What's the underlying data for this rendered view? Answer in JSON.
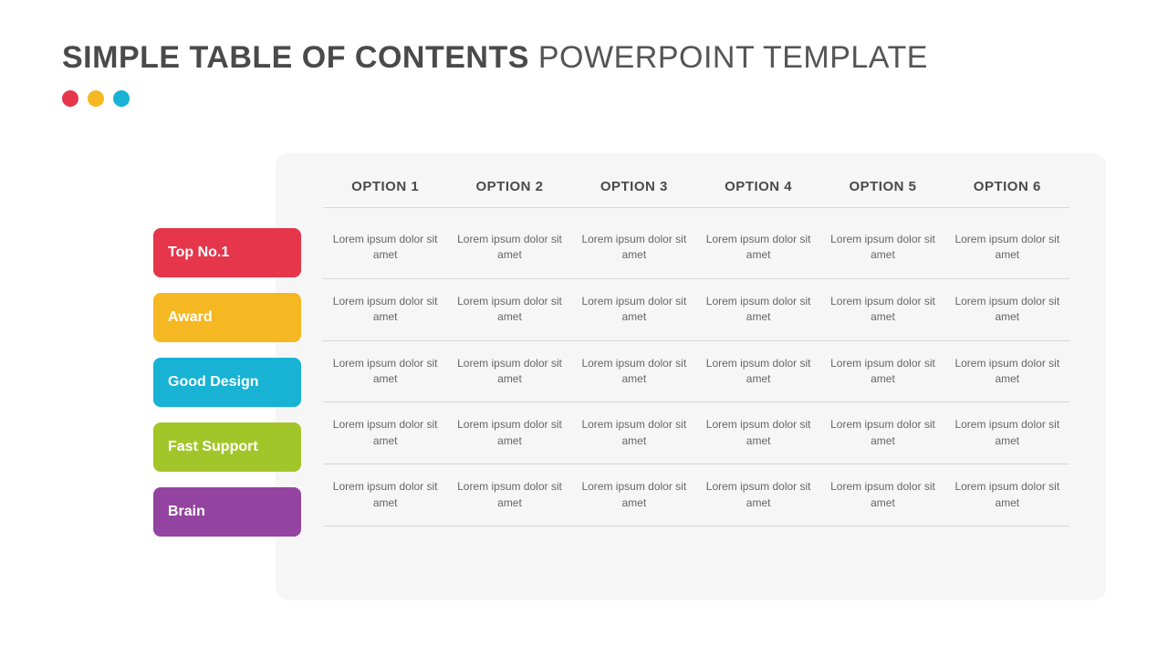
{
  "title": {
    "bold": "SIMPLE TABLE OF CONTENTS",
    "light": " POWERPOINT TEMPLATE",
    "bold_color": "#4a4a4a",
    "light_color": "#555555",
    "fontsize": 34
  },
  "dots": {
    "colors": [
      "#e5364b",
      "#f5b823",
      "#17b2d4"
    ],
    "size": 18
  },
  "table": {
    "type": "table",
    "background_color": "#f6f6f6",
    "border_radius": 14,
    "divider_color": "#d8d8d8",
    "columns": [
      "OPTION 1",
      "OPTION 2",
      "OPTION 3",
      "OPTION 4",
      "OPTION 5",
      "OPTION 6"
    ],
    "column_header_color": "#4a4a4a",
    "column_header_fontsize": 15,
    "cell_text_color": "#666666",
    "cell_fontsize": 12,
    "rows": [
      {
        "label": "Top No.1",
        "label_color": "#e5364b",
        "cells": [
          "Lorem ipsum dolor sit amet",
          "Lorem ipsum dolor sit amet",
          "Lorem ipsum dolor sit amet",
          "Lorem ipsum dolor sit amet",
          "Lorem ipsum dolor sit amet",
          "Lorem ipsum dolor sit amet"
        ]
      },
      {
        "label": "Award",
        "label_color": "#f5b823",
        "cells": [
          "Lorem ipsum dolor sit amet",
          "Lorem ipsum dolor sit amet",
          "Lorem ipsum dolor sit amet",
          "Lorem ipsum dolor sit amet",
          "Lorem ipsum dolor sit amet",
          "Lorem ipsum dolor sit amet"
        ]
      },
      {
        "label": "Good Design",
        "label_color": "#17b2d4",
        "cells": [
          "Lorem ipsum dolor sit amet",
          "Lorem ipsum dolor sit amet",
          "Lorem ipsum dolor sit amet",
          "Lorem ipsum dolor sit amet",
          "Lorem ipsum dolor sit amet",
          "Lorem ipsum dolor sit amet"
        ]
      },
      {
        "label": "Fast Support",
        "label_color": "#a2c62a",
        "cells": [
          "Lorem ipsum dolor sit amet",
          "Lorem ipsum dolor sit amet",
          "Lorem ipsum dolor sit amet",
          "Lorem ipsum dolor sit amet",
          "Lorem ipsum dolor sit amet",
          "Lorem ipsum dolor sit amet"
        ]
      },
      {
        "label": "Brain",
        "label_color": "#9344a0",
        "cells": [
          "Lorem ipsum dolor sit amet",
          "Lorem ipsum dolor sit amet",
          "Lorem ipsum dolor sit amet",
          "Lorem ipsum dolor sit amet",
          "Lorem ipsum dolor sit amet",
          "Lorem ipsum dolor sit amet"
        ]
      }
    ],
    "row_label_width": 162,
    "row_label_height": 54,
    "row_label_fontsize": 16,
    "row_label_text_color": "#ffffff"
  }
}
